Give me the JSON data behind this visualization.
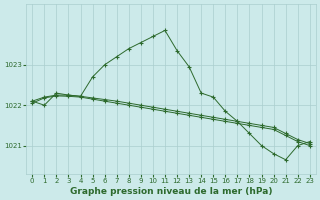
{
  "background_color": "#cceaea",
  "plot_bg_color": "#cceaea",
  "grid_color": "#aacece",
  "line_color": "#2d6a2d",
  "marker_color": "#2d6a2d",
  "xlabel": "Graphe pression niveau de la mer (hPa)",
  "xlabel_fontsize": 6.5,
  "xlim": [
    -0.5,
    23.5
  ],
  "ylim": [
    1020.3,
    1024.5
  ],
  "yticks": [
    1021,
    1022,
    1023
  ],
  "xticks": [
    0,
    1,
    2,
    3,
    4,
    5,
    6,
    7,
    8,
    9,
    10,
    11,
    12,
    13,
    14,
    15,
    16,
    17,
    18,
    19,
    20,
    21,
    22,
    23
  ],
  "series": [
    {
      "x": [
        0,
        1,
        2,
        3,
        4,
        5,
        6,
        7,
        8,
        9,
        10,
        11,
        12,
        13,
        14,
        15,
        16,
        17,
        18,
        19,
        20,
        21,
        22,
        23
      ],
      "y": [
        1022.1,
        1022.0,
        1022.3,
        1022.25,
        1022.22,
        1022.7,
        1023.0,
        1023.2,
        1023.4,
        1023.55,
        1023.7,
        1023.85,
        1023.35,
        1022.95,
        1022.3,
        1022.2,
        1021.85,
        1021.6,
        1021.3,
        1021.0,
        1020.8,
        1020.65,
        1021.0,
        1021.1
      ]
    },
    {
      "x": [
        0,
        1,
        2,
        3,
        4,
        5,
        6,
        7,
        8,
        9,
        10,
        11,
        12,
        13,
        14,
        15,
        16,
        17,
        18,
        19,
        20,
        21,
        22,
        23
      ],
      "y": [
        1022.1,
        1022.2,
        1022.25,
        1022.25,
        1022.22,
        1022.18,
        1022.14,
        1022.1,
        1022.05,
        1022.0,
        1021.95,
        1021.9,
        1021.85,
        1021.8,
        1021.75,
        1021.7,
        1021.65,
        1021.6,
        1021.55,
        1021.5,
        1021.45,
        1021.3,
        1021.15,
        1021.05
      ]
    },
    {
      "x": [
        0,
        1,
        2,
        3,
        4,
        5,
        6,
        7,
        8,
        9,
        10,
        11,
        12,
        13,
        14,
        15,
        16,
        17,
        18,
        19,
        20,
        21,
        22,
        23
      ],
      "y": [
        1022.05,
        1022.18,
        1022.23,
        1022.22,
        1022.2,
        1022.15,
        1022.1,
        1022.05,
        1022.0,
        1021.95,
        1021.9,
        1021.85,
        1021.8,
        1021.75,
        1021.7,
        1021.65,
        1021.6,
        1021.55,
        1021.5,
        1021.45,
        1021.4,
        1021.25,
        1021.1,
        1021.0
      ]
    }
  ]
}
